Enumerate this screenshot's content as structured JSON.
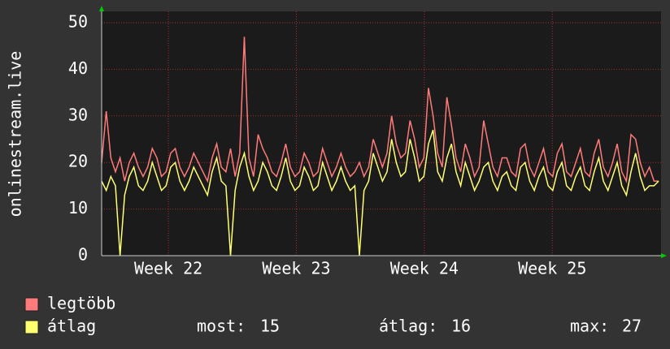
{
  "chart_data": {
    "type": "line",
    "y_label": "onlinestream.live",
    "ylim": [
      0,
      50
    ],
    "yticks": [
      0,
      10,
      20,
      30,
      40,
      50
    ],
    "xlim": [
      0,
      121
    ],
    "xticks": [
      {
        "value": 14.5,
        "label": "Week 22"
      },
      {
        "value": 42.3,
        "label": "Week 23"
      },
      {
        "value": 70.1,
        "label": "Week 24"
      },
      {
        "value": 97.9,
        "label": "Week 25"
      }
    ],
    "grid": true,
    "series": [
      {
        "name": "legtöbb",
        "color": "#ff7a7a",
        "values": [
          20,
          31,
          21,
          18,
          21,
          16,
          20,
          22,
          19,
          17,
          19,
          23,
          21,
          17,
          18,
          22,
          23,
          19,
          17,
          19,
          22,
          20,
          18,
          16,
          21,
          24,
          19,
          18,
          23,
          17,
          22,
          47,
          21,
          17,
          26,
          23,
          21,
          18,
          17,
          20,
          24,
          19,
          17,
          18,
          22,
          20,
          17,
          18,
          23,
          20,
          17,
          19,
          22,
          19,
          17,
          18,
          20,
          17,
          19,
          25,
          22,
          19,
          22,
          30,
          24,
          21,
          22,
          29,
          25,
          19,
          21,
          36,
          30,
          22,
          19,
          34,
          28,
          21,
          18,
          24,
          21,
          17,
          19,
          29,
          24,
          19,
          17,
          21,
          21,
          18,
          17,
          23,
          24,
          19,
          17,
          20,
          23,
          18,
          17,
          22,
          24,
          18,
          17,
          20,
          23,
          18,
          17,
          22,
          25,
          19,
          17,
          20,
          24,
          18,
          16,
          26,
          25,
          20,
          17,
          19,
          16,
          16
        ]
      },
      {
        "name": "átlag",
        "color": "#ffff70",
        "values": [
          16,
          14,
          17,
          15,
          0,
          13,
          17,
          19,
          15,
          14,
          16,
          20,
          17,
          14,
          15,
          19,
          20,
          16,
          14,
          16,
          19,
          17,
          15,
          13,
          18,
          21,
          16,
          15,
          0,
          14,
          19,
          22,
          17,
          14,
          16,
          20,
          18,
          15,
          14,
          17,
          21,
          16,
          14,
          15,
          19,
          17,
          14,
          15,
          20,
          17,
          14,
          16,
          19,
          16,
          14,
          15,
          0,
          14,
          16,
          22,
          19,
          16,
          18,
          25,
          20,
          17,
          18,
          25,
          21,
          16,
          17,
          24,
          27,
          18,
          16,
          21,
          24,
          18,
          15,
          20,
          17,
          14,
          16,
          19,
          20,
          16,
          14,
          17,
          18,
          15,
          14,
          19,
          20,
          16,
          14,
          17,
          19,
          15,
          14,
          18,
          20,
          15,
          14,
          17,
          19,
          15,
          14,
          18,
          21,
          16,
          14,
          17,
          20,
          15,
          13,
          18,
          22,
          17,
          14,
          15,
          15,
          16
        ]
      }
    ],
    "stats": [
      {
        "label": "most:",
        "value": 15
      },
      {
        "label": "átlag:",
        "value": 16
      },
      {
        "label": "max:",
        "value": 27
      }
    ]
  }
}
